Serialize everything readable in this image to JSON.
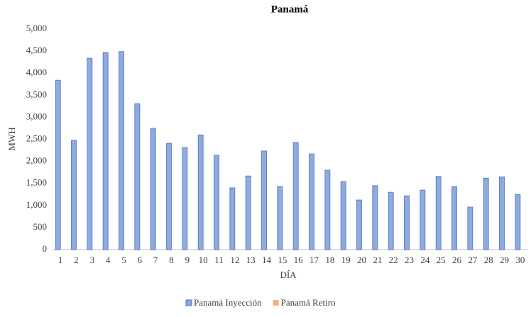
{
  "chart_data": {
    "type": "bar",
    "title": "Panamá",
    "x_label": "DÍA",
    "y_label": "MWH",
    "categories": [
      "1",
      "2",
      "3",
      "4",
      "5",
      "6",
      "7",
      "8",
      "9",
      "10",
      "11",
      "12",
      "13",
      "14",
      "15",
      "16",
      "17",
      "18",
      "19",
      "20",
      "21",
      "22",
      "23",
      "24",
      "25",
      "26",
      "27",
      "28",
      "29",
      "30"
    ],
    "series": [
      {
        "name": "Panamá Inyección",
        "color": "#8faadc",
        "values": [
          3840,
          2480,
          4340,
          4470,
          4490,
          3310,
          2750,
          2410,
          2315,
          2600,
          2140,
          1400,
          1670,
          2235,
          1430,
          2430,
          2170,
          1800,
          1545,
          1125,
          1450,
          1300,
          1220,
          1350,
          1660,
          1430,
          965,
          1620,
          1650,
          1250
        ]
      },
      {
        "name": "Panamá Retiro",
        "color": "#f4b183",
        "values": [
          0,
          0,
          0,
          0,
          0,
          0,
          0,
          0,
          0,
          0,
          0,
          0,
          0,
          0,
          0,
          0,
          0,
          0,
          0,
          0,
          0,
          0,
          0,
          0,
          0,
          0,
          0,
          0,
          0,
          0
        ]
      }
    ],
    "ylim": [
      0,
      5000
    ],
    "yticks": [
      0,
      {
        "value": 500,
        "label": "500"
      },
      {
        "value": 1000,
        "label": "1,000"
      },
      {
        "value": 1500,
        "label": "1,500"
      },
      {
        "value": 2000,
        "label": "2,000"
      },
      {
        "value": 2500,
        "label": "2,500"
      },
      {
        "value": 3000,
        "label": "3,000"
      },
      {
        "value": 3500,
        "label": "3,500"
      },
      {
        "value": 4000,
        "label": "4,000"
      },
      {
        "value": 4500,
        "label": "4,500"
      },
      {
        "value": 5000,
        "label": "5,000"
      }
    ],
    "grid": false,
    "legend": "bottom"
  }
}
